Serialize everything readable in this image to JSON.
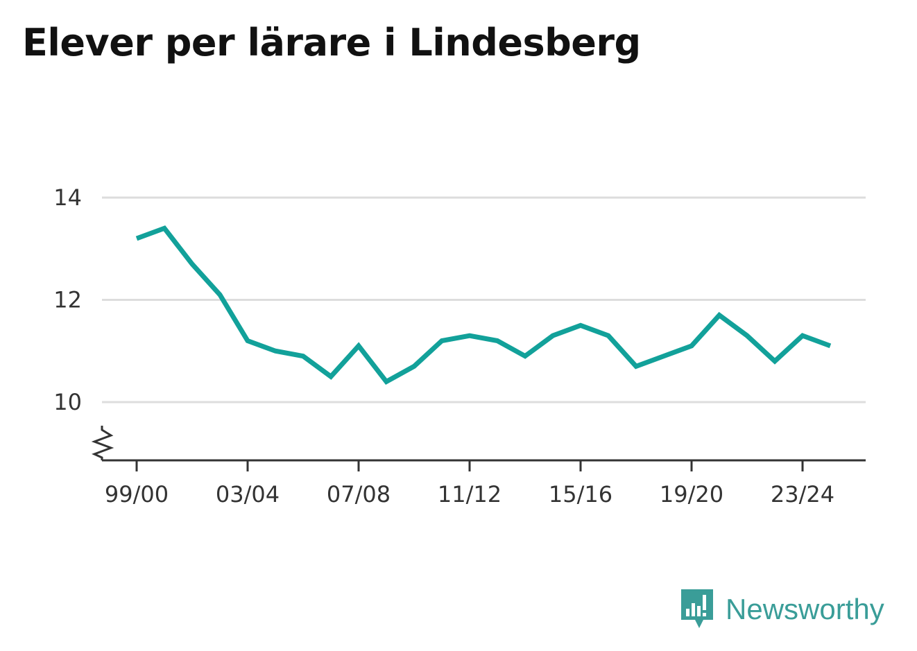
{
  "title": "Elever per lärare i Lindesberg",
  "brand": {
    "name": "Newsworthy",
    "icon": "newsworthy-logo-icon",
    "color": "#3a9d98"
  },
  "chart_data": {
    "type": "line",
    "title": "Elever per lärare i Lindesberg",
    "xlabel": "",
    "ylabel": "",
    "x": [
      "99/00",
      "00/01",
      "01/02",
      "02/03",
      "03/04",
      "04/05",
      "05/06",
      "06/07",
      "07/08",
      "08/09",
      "09/10",
      "10/11",
      "11/12",
      "12/13",
      "13/14",
      "14/15",
      "15/16",
      "16/17",
      "17/18",
      "18/19",
      "19/20",
      "20/21",
      "21/22",
      "22/23",
      "23/24",
      "24/25"
    ],
    "series": [
      {
        "values": [
          13.2,
          13.4,
          12.7,
          12.1,
          11.2,
          11.0,
          10.9,
          10.5,
          11.1,
          10.4,
          10.7,
          11.2,
          11.3,
          11.2,
          10.9,
          11.3,
          11.5,
          11.3,
          10.7,
          10.9,
          11.1,
          11.7,
          11.3,
          10.8,
          11.3,
          11.1
        ],
        "color": "#12a19a"
      }
    ],
    "x_tick_labels": [
      "99/00",
      "03/04",
      "07/08",
      "11/12",
      "15/16",
      "19/20",
      "23/24"
    ],
    "y_ticks": [
      10,
      12,
      14
    ],
    "ylim": [
      9,
      14
    ],
    "axis_break": true,
    "grid": true,
    "legend": "none"
  }
}
